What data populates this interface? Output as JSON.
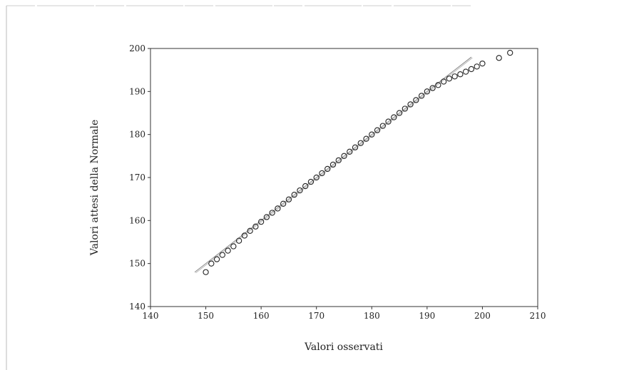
{
  "chart_data": {
    "type": "scatter",
    "xlabel": "Valori osservati",
    "ylabel": "Valori attesi della Normale",
    "xlim": [
      140,
      210
    ],
    "ylim": [
      140,
      200
    ],
    "xticks": [
      140,
      150,
      160,
      170,
      180,
      190,
      200,
      210
    ],
    "yticks": [
      140,
      150,
      160,
      170,
      180,
      190,
      200
    ],
    "grid": false,
    "reference_line": {
      "x": [
        148,
        198
      ],
      "y": [
        148,
        198
      ]
    },
    "points": {
      "x": [
        150,
        151,
        152,
        153,
        154,
        155,
        156,
        157,
        158,
        159,
        160,
        161,
        162,
        163,
        164,
        165,
        166,
        167,
        168,
        169,
        170,
        171,
        172,
        173,
        174,
        175,
        176,
        177,
        178,
        179,
        180,
        181,
        182,
        183,
        184,
        185,
        186,
        187,
        188,
        189,
        190,
        191,
        192,
        193,
        194,
        195,
        196,
        197,
        198,
        199,
        200,
        203,
        205
      ],
      "y": [
        148,
        150,
        151,
        152,
        153,
        154,
        155.3,
        156.5,
        157.6,
        158.6,
        159.7,
        160.8,
        161.8,
        162.8,
        163.9,
        164.9,
        166,
        167,
        168,
        169,
        170,
        171,
        172,
        173,
        174,
        175,
        176,
        177,
        178,
        179,
        180,
        181,
        182,
        183,
        184,
        185,
        186,
        187,
        188,
        189,
        190,
        190.8,
        191.5,
        192.3,
        193,
        193.5,
        194,
        194.6,
        195.2,
        195.8,
        196.5,
        197.8,
        199
      ]
    }
  }
}
